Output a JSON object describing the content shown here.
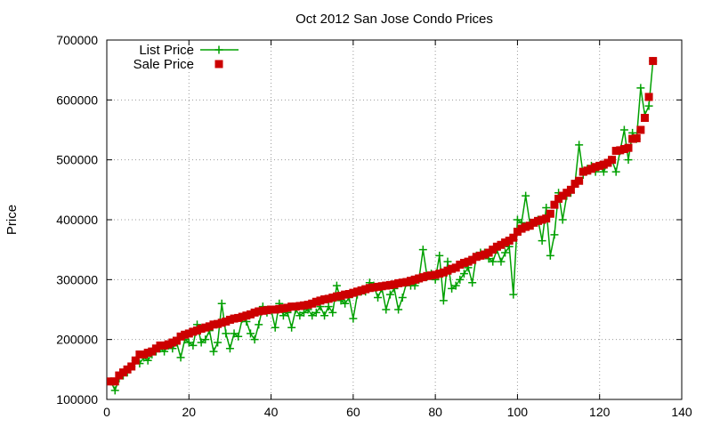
{
  "chart_data": {
    "type": "line",
    "title": "Oct 2012 San Jose Condo Prices",
    "xlabel": "",
    "ylabel": "Price",
    "xlim": [
      0,
      140
    ],
    "ylim": [
      100000,
      700000
    ],
    "x_ticks": [
      0,
      20,
      40,
      60,
      80,
      100,
      120,
      140
    ],
    "y_ticks": [
      100000,
      200000,
      300000,
      400000,
      500000,
      600000,
      700000
    ],
    "grid": true,
    "legend_position": "top-left",
    "series": [
      {
        "name": "List Price",
        "color": "#00a000",
        "marker": "plus",
        "x": [
          1,
          2,
          3,
          4,
          5,
          6,
          7,
          8,
          9,
          10,
          11,
          12,
          13,
          14,
          15,
          16,
          17,
          18,
          19,
          20,
          21,
          22,
          23,
          24,
          25,
          26,
          27,
          28,
          29,
          30,
          31,
          32,
          33,
          34,
          35,
          36,
          37,
          38,
          39,
          40,
          41,
          42,
          43,
          44,
          45,
          46,
          47,
          48,
          49,
          50,
          51,
          52,
          53,
          54,
          55,
          56,
          57,
          58,
          59,
          60,
          61,
          62,
          63,
          64,
          65,
          66,
          67,
          68,
          69,
          70,
          71,
          72,
          73,
          74,
          75,
          76,
          77,
          78,
          79,
          80,
          81,
          82,
          83,
          84,
          85,
          86,
          87,
          88,
          89,
          90,
          91,
          92,
          93,
          94,
          95,
          96,
          97,
          98,
          99,
          100,
          101,
          102,
          103,
          104,
          105,
          106,
          107,
          108,
          109,
          110,
          111,
          112,
          113,
          114,
          115,
          116,
          117,
          118,
          119,
          120,
          121,
          122,
          123,
          124,
          125,
          126,
          127,
          128,
          129,
          130,
          131,
          132,
          133
        ],
        "y": [
          130000,
          115000,
          135000,
          140000,
          145000,
          155000,
          165000,
          160000,
          170000,
          165000,
          175000,
          180000,
          185000,
          180000,
          190000,
          185000,
          195000,
          170000,
          200000,
          195000,
          190000,
          225000,
          195000,
          200000,
          215000,
          180000,
          195000,
          260000,
          210000,
          185000,
          210000,
          205000,
          235000,
          230000,
          210000,
          200000,
          225000,
          255000,
          245000,
          250000,
          220000,
          260000,
          240000,
          245000,
          220000,
          250000,
          240000,
          245000,
          250000,
          240000,
          245000,
          255000,
          240000,
          255000,
          245000,
          290000,
          265000,
          260000,
          270000,
          235000,
          275000,
          280000,
          280000,
          295000,
          290000,
          270000,
          285000,
          250000,
          275000,
          285000,
          250000,
          270000,
          295000,
          290000,
          290000,
          300000,
          350000,
          305000,
          310000,
          300000,
          340000,
          265000,
          330000,
          285000,
          290000,
          300000,
          310000,
          320000,
          295000,
          340000,
          345000,
          345000,
          335000,
          330000,
          350000,
          330000,
          345000,
          355000,
          275000,
          400000,
          395000,
          440000,
          395000,
          395000,
          400000,
          365000,
          420000,
          340000,
          375000,
          445000,
          400000,
          440000,
          445000,
          460000,
          525000,
          475000,
          485000,
          490000,
          480000,
          490000,
          480000,
          495000,
          500000,
          480000,
          515000,
          550000,
          500000,
          545000,
          535000,
          620000,
          575000,
          590000,
          665000
        ]
      },
      {
        "name": "Sale Price",
        "color": "#cc0000",
        "marker": "square",
        "x": [
          1,
          2,
          3,
          4,
          5,
          6,
          7,
          8,
          9,
          10,
          11,
          12,
          13,
          14,
          15,
          16,
          17,
          18,
          19,
          20,
          21,
          22,
          23,
          24,
          25,
          26,
          27,
          28,
          29,
          30,
          31,
          32,
          33,
          34,
          35,
          36,
          37,
          38,
          39,
          40,
          41,
          42,
          43,
          44,
          45,
          46,
          47,
          48,
          49,
          50,
          51,
          52,
          53,
          54,
          55,
          56,
          57,
          58,
          59,
          60,
          61,
          62,
          63,
          64,
          65,
          66,
          67,
          68,
          69,
          70,
          71,
          72,
          73,
          74,
          75,
          76,
          77,
          78,
          79,
          80,
          81,
          82,
          83,
          84,
          85,
          86,
          87,
          88,
          89,
          90,
          91,
          92,
          93,
          94,
          95,
          96,
          97,
          98,
          99,
          100,
          101,
          102,
          103,
          104,
          105,
          106,
          107,
          108,
          109,
          110,
          111,
          112,
          113,
          114,
          115,
          116,
          117,
          118,
          119,
          120,
          121,
          122,
          123,
          124,
          125,
          126,
          127,
          128,
          129,
          130,
          131,
          132,
          133
        ],
        "y": [
          130000,
          130000,
          140000,
          145000,
          150000,
          155000,
          165000,
          175000,
          175000,
          178000,
          180000,
          185000,
          190000,
          190000,
          192000,
          195000,
          198000,
          205000,
          208000,
          210000,
          213000,
          215000,
          218000,
          220000,
          222000,
          225000,
          226000,
          228000,
          230000,
          233000,
          235000,
          236000,
          238000,
          240000,
          242000,
          245000,
          247000,
          248000,
          249000,
          250000,
          250000,
          251000,
          252000,
          253000,
          255000,
          255000,
          256000,
          257000,
          258000,
          260000,
          263000,
          265000,
          267000,
          268000,
          270000,
          272000,
          273000,
          275000,
          276000,
          278000,
          280000,
          282000,
          284000,
          286000,
          287000,
          288000,
          289000,
          290000,
          291000,
          292000,
          294000,
          295000,
          296000,
          298000,
          300000,
          302000,
          304000,
          306000,
          307000,
          308000,
          310000,
          312000,
          315000,
          318000,
          320000,
          325000,
          328000,
          330000,
          333000,
          338000,
          340000,
          342000,
          345000,
          350000,
          355000,
          358000,
          362000,
          365000,
          370000,
          380000,
          385000,
          388000,
          390000,
          395000,
          398000,
          400000,
          402000,
          410000,
          425000,
          435000,
          440000,
          445000,
          450000,
          460000,
          465000,
          480000,
          482000,
          485000,
          488000,
          490000,
          492000,
          495000,
          500000,
          515000,
          516000,
          518000,
          520000,
          535000,
          536000,
          550000,
          570000,
          605000,
          665000
        ]
      }
    ]
  }
}
